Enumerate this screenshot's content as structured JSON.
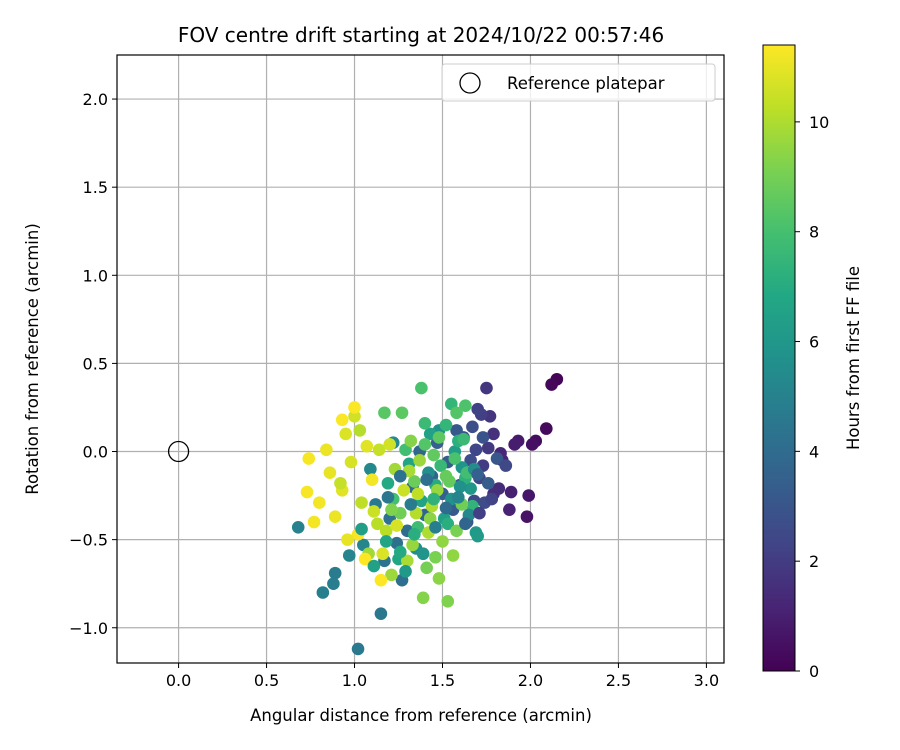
{
  "chart_data": {
    "type": "scatter",
    "title": "FOV centre drift starting at 2024/10/22 00:57:46",
    "xlabel": "Angular distance from reference (arcmin)",
    "ylabel": "Rotation from reference (arcmin)",
    "xlim": [
      -0.35,
      3.1
    ],
    "ylim": [
      -1.2,
      2.25
    ],
    "xticks": [
      "0.0",
      "0.5",
      "1.0",
      "1.5",
      "2.0",
      "2.5",
      "3.0"
    ],
    "yticks": [
      "−1.0",
      "−0.5",
      "0.0",
      "0.5",
      "1.0",
      "1.5",
      "2.0"
    ],
    "grid": true,
    "legend": {
      "position": "top-right",
      "entries": [
        "Reference platepar"
      ]
    },
    "reference_point": {
      "x": 0.0,
      "y": 0.0,
      "label": "Reference platepar"
    },
    "colorbar": {
      "label": "Hours from first FF file",
      "colormap": "viridis",
      "range": [
        0,
        11.4
      ],
      "ticks": [
        "0",
        "2",
        "4",
        "6",
        "8",
        "10"
      ]
    },
    "series": [
      {
        "points": [
          {
            "x": 2.15,
            "y": 0.41,
            "hours": 0.1
          },
          {
            "x": 2.12,
            "y": 0.38,
            "hours": 0.2
          },
          {
            "x": 2.09,
            "y": 0.13,
            "hours": 0.3
          },
          {
            "x": 2.03,
            "y": 0.06,
            "hours": 0.4
          },
          {
            "x": 2.01,
            "y": 0.04,
            "hours": 0.5
          },
          {
            "x": 1.98,
            "y": -0.37,
            "hours": 0.6
          },
          {
            "x": 1.99,
            "y": -0.25,
            "hours": 0.7
          },
          {
            "x": 1.93,
            "y": 0.06,
            "hours": 0.8
          },
          {
            "x": 1.91,
            "y": 0.04,
            "hours": 0.9
          },
          {
            "x": 1.89,
            "y": -0.23,
            "hours": 1.0
          },
          {
            "x": 1.88,
            "y": -0.33,
            "hours": 1.1
          },
          {
            "x": 1.84,
            "y": -0.05,
            "hours": 1.2
          },
          {
            "x": 1.83,
            "y": -0.01,
            "hours": 1.3
          },
          {
            "x": 1.82,
            "y": -0.21,
            "hours": 1.4
          },
          {
            "x": 1.79,
            "y": -0.24,
            "hours": 1.5
          },
          {
            "x": 1.79,
            "y": 0.1,
            "hours": 1.6
          },
          {
            "x": 1.77,
            "y": 0.2,
            "hours": 1.7
          },
          {
            "x": 1.75,
            "y": 0.36,
            "hours": 1.8
          },
          {
            "x": 1.76,
            "y": 0.02,
            "hours": 1.9
          },
          {
            "x": 1.73,
            "y": -0.08,
            "hours": 2.0
          },
          {
            "x": 1.72,
            "y": 0.21,
            "hours": 2.1
          },
          {
            "x": 1.7,
            "y": 0.24,
            "hours": 2.2
          },
          {
            "x": 1.71,
            "y": -0.15,
            "hours": 2.3
          },
          {
            "x": 1.69,
            "y": 0.01,
            "hours": 2.4
          },
          {
            "x": 1.68,
            "y": -0.28,
            "hours": 2.5
          },
          {
            "x": 1.74,
            "y": -0.29,
            "hours": 2.6
          },
          {
            "x": 1.66,
            "y": -0.05,
            "hours": 2.7
          },
          {
            "x": 1.64,
            "y": -0.4,
            "hours": 2.8
          },
          {
            "x": 1.62,
            "y": 0.08,
            "hours": 2.9
          },
          {
            "x": 1.6,
            "y": -0.19,
            "hours": 3.0
          },
          {
            "x": 1.58,
            "y": 0.12,
            "hours": 3.1
          },
          {
            "x": 1.56,
            "y": -0.33,
            "hours": 3.2
          },
          {
            "x": 1.53,
            "y": -0.06,
            "hours": 3.3
          },
          {
            "x": 1.5,
            "y": -0.24,
            "hours": 3.4
          },
          {
            "x": 1.47,
            "y": 0.05,
            "hours": 3.5
          },
          {
            "x": 1.44,
            "y": -0.14,
            "hours": 3.6
          },
          {
            "x": 1.4,
            "y": -0.36,
            "hours": 3.7
          },
          {
            "x": 1.37,
            "y": 0.0,
            "hours": 3.8
          },
          {
            "x": 1.33,
            "y": -0.2,
            "hours": 3.9
          },
          {
            "x": 1.3,
            "y": -0.45,
            "hours": 4.0
          },
          {
            "x": 1.27,
            "y": -0.73,
            "hours": 4.1
          },
          {
            "x": 1.24,
            "y": -0.52,
            "hours": 4.2
          },
          {
            "x": 1.2,
            "y": -0.38,
            "hours": 4.3
          },
          {
            "x": 1.17,
            "y": -0.62,
            "hours": 4.4
          },
          {
            "x": 1.15,
            "y": -0.92,
            "hours": 4.5
          },
          {
            "x": 1.12,
            "y": -0.3,
            "hours": 4.6
          },
          {
            "x": 1.02,
            "y": -1.12,
            "hours": 4.6
          },
          {
            "x": 0.89,
            "y": -0.69,
            "hours": 4.7
          },
          {
            "x": 0.88,
            "y": -0.75,
            "hours": 4.8
          },
          {
            "x": 0.82,
            "y": -0.8,
            "hours": 4.9
          },
          {
            "x": 0.68,
            "y": -0.43,
            "hours": 5.0
          },
          {
            "x": 0.97,
            "y": -0.59,
            "hours": 5.1
          },
          {
            "x": 1.05,
            "y": -0.53,
            "hours": 5.2
          },
          {
            "x": 1.09,
            "y": -0.1,
            "hours": 5.3
          },
          {
            "x": 1.22,
            "y": 0.05,
            "hours": 5.4
          },
          {
            "x": 1.35,
            "y": -0.55,
            "hours": 5.5
          },
          {
            "x": 1.42,
            "y": -0.12,
            "hours": 5.6
          },
          {
            "x": 1.48,
            "y": 0.12,
            "hours": 5.7
          },
          {
            "x": 1.55,
            "y": -0.27,
            "hours": 5.8
          },
          {
            "x": 1.61,
            "y": -0.09,
            "hours": 5.9
          },
          {
            "x": 1.66,
            "y": -0.21,
            "hours": 6.0
          },
          {
            "x": 1.69,
            "y": -0.46,
            "hours": 6.1
          },
          {
            "x": 1.7,
            "y": -0.48,
            "hours": 6.2
          },
          {
            "x": 1.57,
            "y": 0.0,
            "hours": 6.3
          },
          {
            "x": 1.51,
            "y": -0.38,
            "hours": 6.4
          },
          {
            "x": 1.43,
            "y": 0.1,
            "hours": 6.5
          },
          {
            "x": 1.38,
            "y": -0.28,
            "hours": 6.6
          },
          {
            "x": 1.31,
            "y": -0.07,
            "hours": 6.7
          },
          {
            "x": 1.25,
            "y": -0.61,
            "hours": 6.8
          },
          {
            "x": 1.19,
            "y": -0.18,
            "hours": 6.9
          },
          {
            "x": 1.46,
            "y": -0.19,
            "hours": 7.0
          },
          {
            "x": 1.53,
            "y": -0.41,
            "hours": 7.1
          },
          {
            "x": 1.59,
            "y": 0.06,
            "hours": 7.2
          },
          {
            "x": 1.63,
            "y": -0.15,
            "hours": 7.3
          },
          {
            "x": 1.67,
            "y": -0.31,
            "hours": 7.4
          },
          {
            "x": 1.55,
            "y": 0.27,
            "hours": 7.5
          },
          {
            "x": 1.49,
            "y": -0.08,
            "hours": 7.6
          },
          {
            "x": 1.4,
            "y": 0.16,
            "hours": 7.7
          },
          {
            "x": 1.36,
            "y": -0.43,
            "hours": 7.8
          },
          {
            "x": 1.29,
            "y": 0.01,
            "hours": 7.9
          },
          {
            "x": 1.22,
            "y": -0.27,
            "hours": 8.0
          },
          {
            "x": 1.38,
            "y": 0.36,
            "hours": 8.1
          },
          {
            "x": 1.63,
            "y": 0.26,
            "hours": 8.2
          },
          {
            "x": 1.58,
            "y": 0.22,
            "hours": 8.3
          },
          {
            "x": 1.17,
            "y": 0.22,
            "hours": 8.4
          },
          {
            "x": 1.27,
            "y": 0.22,
            "hours": 8.5
          },
          {
            "x": 1.45,
            "y": -0.02,
            "hours": 8.6
          },
          {
            "x": 1.52,
            "y": -0.14,
            "hours": 8.7
          },
          {
            "x": 1.34,
            "y": -0.17,
            "hours": 8.8
          },
          {
            "x": 1.26,
            "y": -0.35,
            "hours": 8.9
          },
          {
            "x": 1.41,
            "y": -0.66,
            "hours": 9.0
          },
          {
            "x": 1.46,
            "y": -0.6,
            "hours": 9.1
          },
          {
            "x": 1.53,
            "y": -0.85,
            "hours": 9.2
          },
          {
            "x": 1.39,
            "y": -0.83,
            "hours": 9.3
          },
          {
            "x": 1.48,
            "y": -0.72,
            "hours": 9.4
          },
          {
            "x": 1.56,
            "y": -0.59,
            "hours": 9.5
          },
          {
            "x": 1.33,
            "y": -0.53,
            "hours": 9.6
          },
          {
            "x": 1.21,
            "y": -0.7,
            "hours": 9.7
          },
          {
            "x": 1.08,
            "y": -0.58,
            "hours": 9.8
          },
          {
            "x": 1.31,
            "y": -0.11,
            "hours": 9.9
          },
          {
            "x": 1.44,
            "y": -0.31,
            "hours": 10.0
          },
          {
            "x": 1.03,
            "y": 0.12,
            "hours": 10.1
          },
          {
            "x": 1.18,
            "y": -0.45,
            "hours": 10.2
          },
          {
            "x": 1.36,
            "y": -0.24,
            "hours": 10.3
          },
          {
            "x": 1.14,
            "y": 0.01,
            "hours": 10.4
          },
          {
            "x": 1.11,
            "y": -0.34,
            "hours": 10.5
          },
          {
            "x": 1.0,
            "y": 0.2,
            "hours": 10.6
          },
          {
            "x": 0.98,
            "y": -0.06,
            "hours": 10.7
          },
          {
            "x": 0.95,
            "y": 0.1,
            "hours": 10.8
          },
          {
            "x": 0.93,
            "y": -0.22,
            "hours": 10.9
          },
          {
            "x": 0.86,
            "y": -0.12,
            "hours": 11.0
          },
          {
            "x": 0.84,
            "y": 0.01,
            "hours": 11.1
          },
          {
            "x": 0.8,
            "y": -0.29,
            "hours": 11.2
          },
          {
            "x": 0.77,
            "y": -0.4,
            "hours": 11.25
          },
          {
            "x": 0.73,
            "y": -0.23,
            "hours": 11.3
          },
          {
            "x": 0.74,
            "y": -0.04,
            "hours": 11.3
          },
          {
            "x": 0.93,
            "y": 0.18,
            "hours": 11.35
          },
          {
            "x": 1.0,
            "y": 0.25,
            "hours": 11.35
          },
          {
            "x": 1.06,
            "y": -0.61,
            "hours": 11.4
          },
          {
            "x": 1.15,
            "y": -0.73,
            "hours": 11.4
          },
          {
            "x": 1.02,
            "y": -0.47,
            "hours": 11.3
          },
          {
            "x": 1.1,
            "y": -0.16,
            "hours": 11.2
          },
          {
            "x": 0.89,
            "y": -0.37,
            "hours": 11.1
          },
          {
            "x": 0.96,
            "y": -0.5,
            "hours": 11.0
          },
          {
            "x": 1.07,
            "y": 0.03,
            "hours": 10.9
          },
          {
            "x": 1.16,
            "y": -0.58,
            "hours": 10.8
          },
          {
            "x": 1.24,
            "y": -0.42,
            "hours": 10.7
          },
          {
            "x": 1.2,
            "y": 0.04,
            "hours": 10.6
          },
          {
            "x": 1.28,
            "y": -0.22,
            "hours": 10.5
          },
          {
            "x": 0.92,
            "y": -0.18,
            "hours": 10.4
          },
          {
            "x": 1.04,
            "y": -0.29,
            "hours": 10.3
          },
          {
            "x": 1.13,
            "y": -0.41,
            "hours": 10.2
          },
          {
            "x": 1.35,
            "y": -0.35,
            "hours": 10.1
          },
          {
            "x": 1.42,
            "y": -0.46,
            "hours": 10.0
          },
          {
            "x": 1.3,
            "y": -0.62,
            "hours": 9.9
          },
          {
            "x": 1.23,
            "y": -0.1,
            "hours": 9.8
          },
          {
            "x": 1.37,
            "y": -0.05,
            "hours": 9.7
          },
          {
            "x": 1.47,
            "y": -0.22,
            "hours": 9.6
          },
          {
            "x": 1.5,
            "y": -0.51,
            "hours": 9.5
          },
          {
            "x": 1.43,
            "y": -0.38,
            "hours": 9.4
          },
          {
            "x": 1.32,
            "y": 0.06,
            "hours": 9.3
          },
          {
            "x": 1.21,
            "y": -0.33,
            "hours": 9.2
          },
          {
            "x": 1.58,
            "y": -0.45,
            "hours": 9.1
          },
          {
            "x": 1.61,
            "y": -0.3,
            "hours": 8.9
          },
          {
            "x": 1.54,
            "y": -0.17,
            "hours": 8.7
          },
          {
            "x": 1.48,
            "y": 0.08,
            "hours": 8.5
          },
          {
            "x": 1.4,
            "y": 0.04,
            "hours": 8.3
          },
          {
            "x": 1.57,
            "y": -0.04,
            "hours": 8.1
          },
          {
            "x": 1.64,
            "y": -0.12,
            "hours": 7.9
          },
          {
            "x": 1.62,
            "y": 0.07,
            "hours": 7.7
          },
          {
            "x": 1.52,
            "y": 0.15,
            "hours": 7.5
          },
          {
            "x": 1.45,
            "y": -0.27,
            "hours": 7.3
          },
          {
            "x": 1.34,
            "y": -0.47,
            "hours": 7.1
          },
          {
            "x": 1.26,
            "y": -0.57,
            "hours": 6.9
          },
          {
            "x": 1.18,
            "y": -0.51,
            "hours": 6.7
          },
          {
            "x": 1.11,
            "y": -0.65,
            "hours": 6.5
          },
          {
            "x": 1.04,
            "y": -0.44,
            "hours": 6.3
          },
          {
            "x": 1.29,
            "y": -0.68,
            "hours": 6.1
          },
          {
            "x": 1.39,
            "y": -0.58,
            "hours": 5.9
          },
          {
            "x": 1.6,
            "y": -0.2,
            "hours": 5.7
          },
          {
            "x": 1.68,
            "y": -0.1,
            "hours": 5.5
          },
          {
            "x": 1.65,
            "y": -0.36,
            "hours": 5.3
          },
          {
            "x": 1.59,
            "y": -0.26,
            "hours": 5.1
          },
          {
            "x": 1.46,
            "y": -0.43,
            "hours": 4.9
          },
          {
            "x": 1.32,
            "y": -0.3,
            "hours": 4.7
          },
          {
            "x": 1.19,
            "y": -0.26,
            "hours": 4.5
          },
          {
            "x": 1.26,
            "y": -0.14,
            "hours": 4.3
          },
          {
            "x": 1.41,
            "y": -0.16,
            "hours": 4.1
          },
          {
            "x": 1.52,
            "y": -0.32,
            "hours": 3.9
          },
          {
            "x": 1.63,
            "y": -0.41,
            "hours": 3.7
          },
          {
            "x": 1.7,
            "y": -0.13,
            "hours": 3.5
          },
          {
            "x": 1.76,
            "y": -0.18,
            "hours": 3.3
          },
          {
            "x": 1.81,
            "y": -0.04,
            "hours": 3.1
          },
          {
            "x": 1.73,
            "y": 0.08,
            "hours": 2.9
          },
          {
            "x": 1.67,
            "y": 0.14,
            "hours": 2.7
          },
          {
            "x": 1.86,
            "y": -0.08,
            "hours": 2.5
          },
          {
            "x": 1.78,
            "y": -0.27,
            "hours": 2.3
          },
          {
            "x": 1.71,
            "y": -0.35,
            "hours": 2.1
          }
        ]
      }
    ]
  }
}
